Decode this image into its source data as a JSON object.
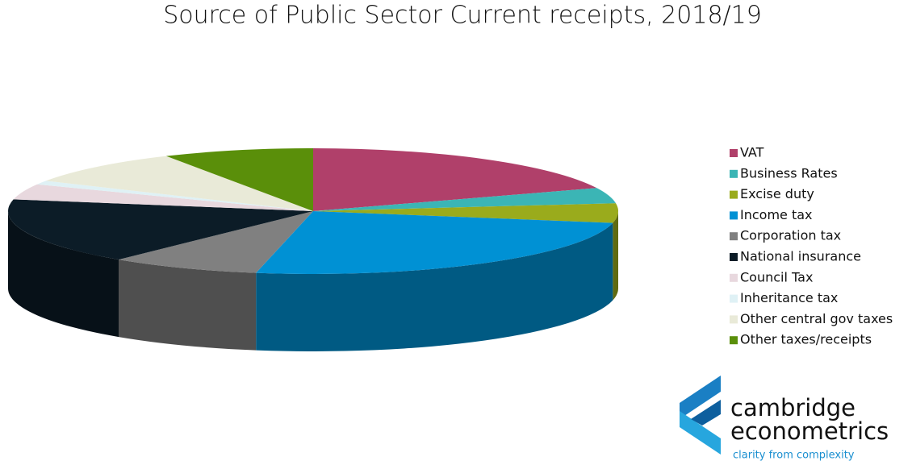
{
  "chart_data": {
    "type": "pie3d",
    "title": "Source of Public Sector Current receipts, 2018/19",
    "series": [
      {
        "name": "VAT",
        "color": "#b0406a",
        "values": [
          19
        ]
      },
      {
        "name": "Business Rates",
        "color": "#3bb5b5",
        "values": [
          4
        ]
      },
      {
        "name": "Excise duty",
        "color": "#9aab1c",
        "values": [
          5
        ]
      },
      {
        "name": "Income tax",
        "color": "#0091d4",
        "values": [
          25
        ]
      },
      {
        "name": "Corporation tax",
        "color": "#808080",
        "values": [
          8
        ]
      },
      {
        "name": "National insurance",
        "color": "#0c1c27",
        "values": [
          17
        ]
      },
      {
        "name": "Council Tax",
        "color": "#e8d8de",
        "values": [
          4
        ]
      },
      {
        "name": "Inheritance tax",
        "color": "#dff1f5",
        "values": [
          1
        ]
      },
      {
        "name": "Other central gov taxes",
        "color": "#e9ead8",
        "values": [
          9
        ]
      },
      {
        "name": "Other taxes/receipts",
        "color": "#5a8f0a",
        "values": [
          8
        ]
      }
    ],
    "legend": "right"
  },
  "logo": {
    "line1": "cambridge",
    "line2": "econometrics",
    "tagline": "clarity from complexity"
  }
}
